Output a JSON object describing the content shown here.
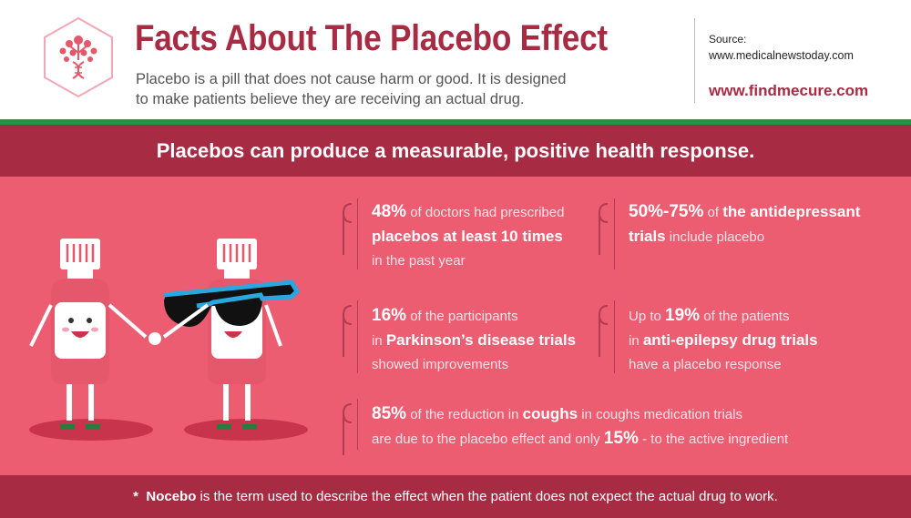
{
  "header": {
    "title": "Facts About The Placebo Effect",
    "subtitle_line1": "Placebo is a pill that does not cause harm or good. It is designed",
    "subtitle_line2": "to make patients believe they are receiving an actual drug.",
    "source_label": "Source:",
    "source_url": "www.medicalnewstoday.com",
    "brand": "www.findmecure.com"
  },
  "banner": {
    "text": "Placebos can produce a measurable, positive health response."
  },
  "facts": {
    "f1": {
      "stat": "48%",
      "t1": " of doctors had prescribed",
      "t2": "placebos at least 10 times",
      "t3": "in the past year"
    },
    "f2": {
      "stat": "50%-75%",
      "t1": " of ",
      "t1b": "the antidepressant",
      "t2": "trials",
      "t2b": " include placebo"
    },
    "f3": {
      "stat": "16%",
      "t1": " of the participants",
      "t2a": "in ",
      "t2b": "Parkinson’s disease trials",
      "t3": "showed improvements"
    },
    "f4": {
      "pre": "Up to ",
      "stat": "19%",
      "t1": " of the patients",
      "t2a": "in ",
      "t2b": "anti-epilepsy drug trials",
      "t3": "have a placebo response"
    },
    "f5": {
      "stat": "85%",
      "t1": " of the reduction in ",
      "t1b": "coughs",
      "t1c": " in coughs medication trials",
      "t2": "are due to the placebo effect and only ",
      "t2b": "15%",
      "t2c": " - to the active ingredient"
    }
  },
  "footer": {
    "star": "*",
    "term": "Nocebo",
    "text": " is the term used to describe the effect when the patient does not expect the actual drug to work."
  },
  "colors": {
    "accent": "#a72b43",
    "panel": "#ec5d72",
    "green": "#239243"
  },
  "icons": [
    "dna-tree-logo-icon",
    "bracket-icon",
    "pill-bottle-characters-illustration"
  ]
}
